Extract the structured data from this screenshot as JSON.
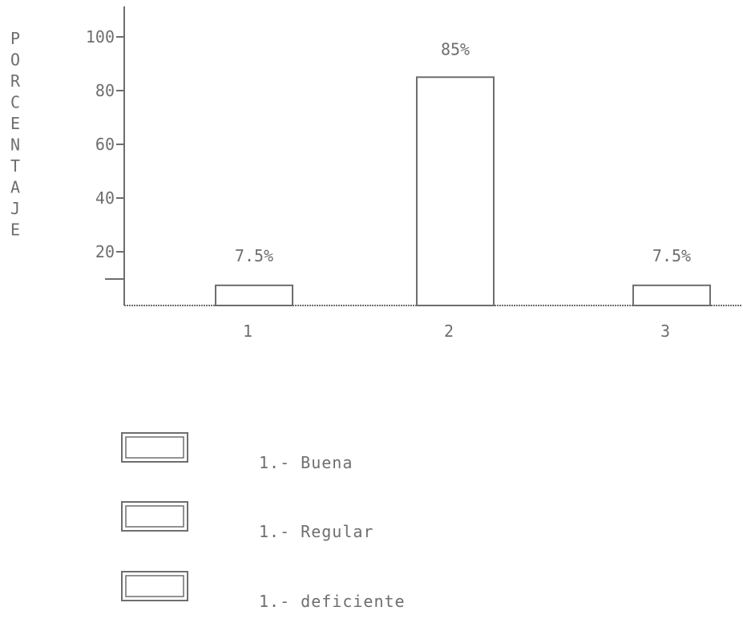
{
  "chart_data": {
    "type": "bar",
    "ylabel": "PORCENTAJE",
    "xlabel": "",
    "categories": [
      "1",
      "2",
      "3"
    ],
    "values": [
      7.5,
      85,
      7.5
    ],
    "data_labels": [
      "7.5%",
      "85%",
      "7.5%"
    ],
    "y_ticks": [
      20,
      40,
      60,
      80,
      100
    ],
    "y_tick_labels": [
      "20",
      "40",
      "60",
      "80",
      "100"
    ],
    "ylim": [
      0,
      100
    ],
    "grid": false,
    "legend_position": "bottom-left",
    "legend": [
      {
        "label": "1.- Buena"
      },
      {
        "label": "1.- Regular"
      },
      {
        "label": "1.- deficiente"
      }
    ],
    "colors": {
      "ink": "#6e6e6e",
      "bar_fill": "#ffffff",
      "background": "#ffffff"
    }
  }
}
